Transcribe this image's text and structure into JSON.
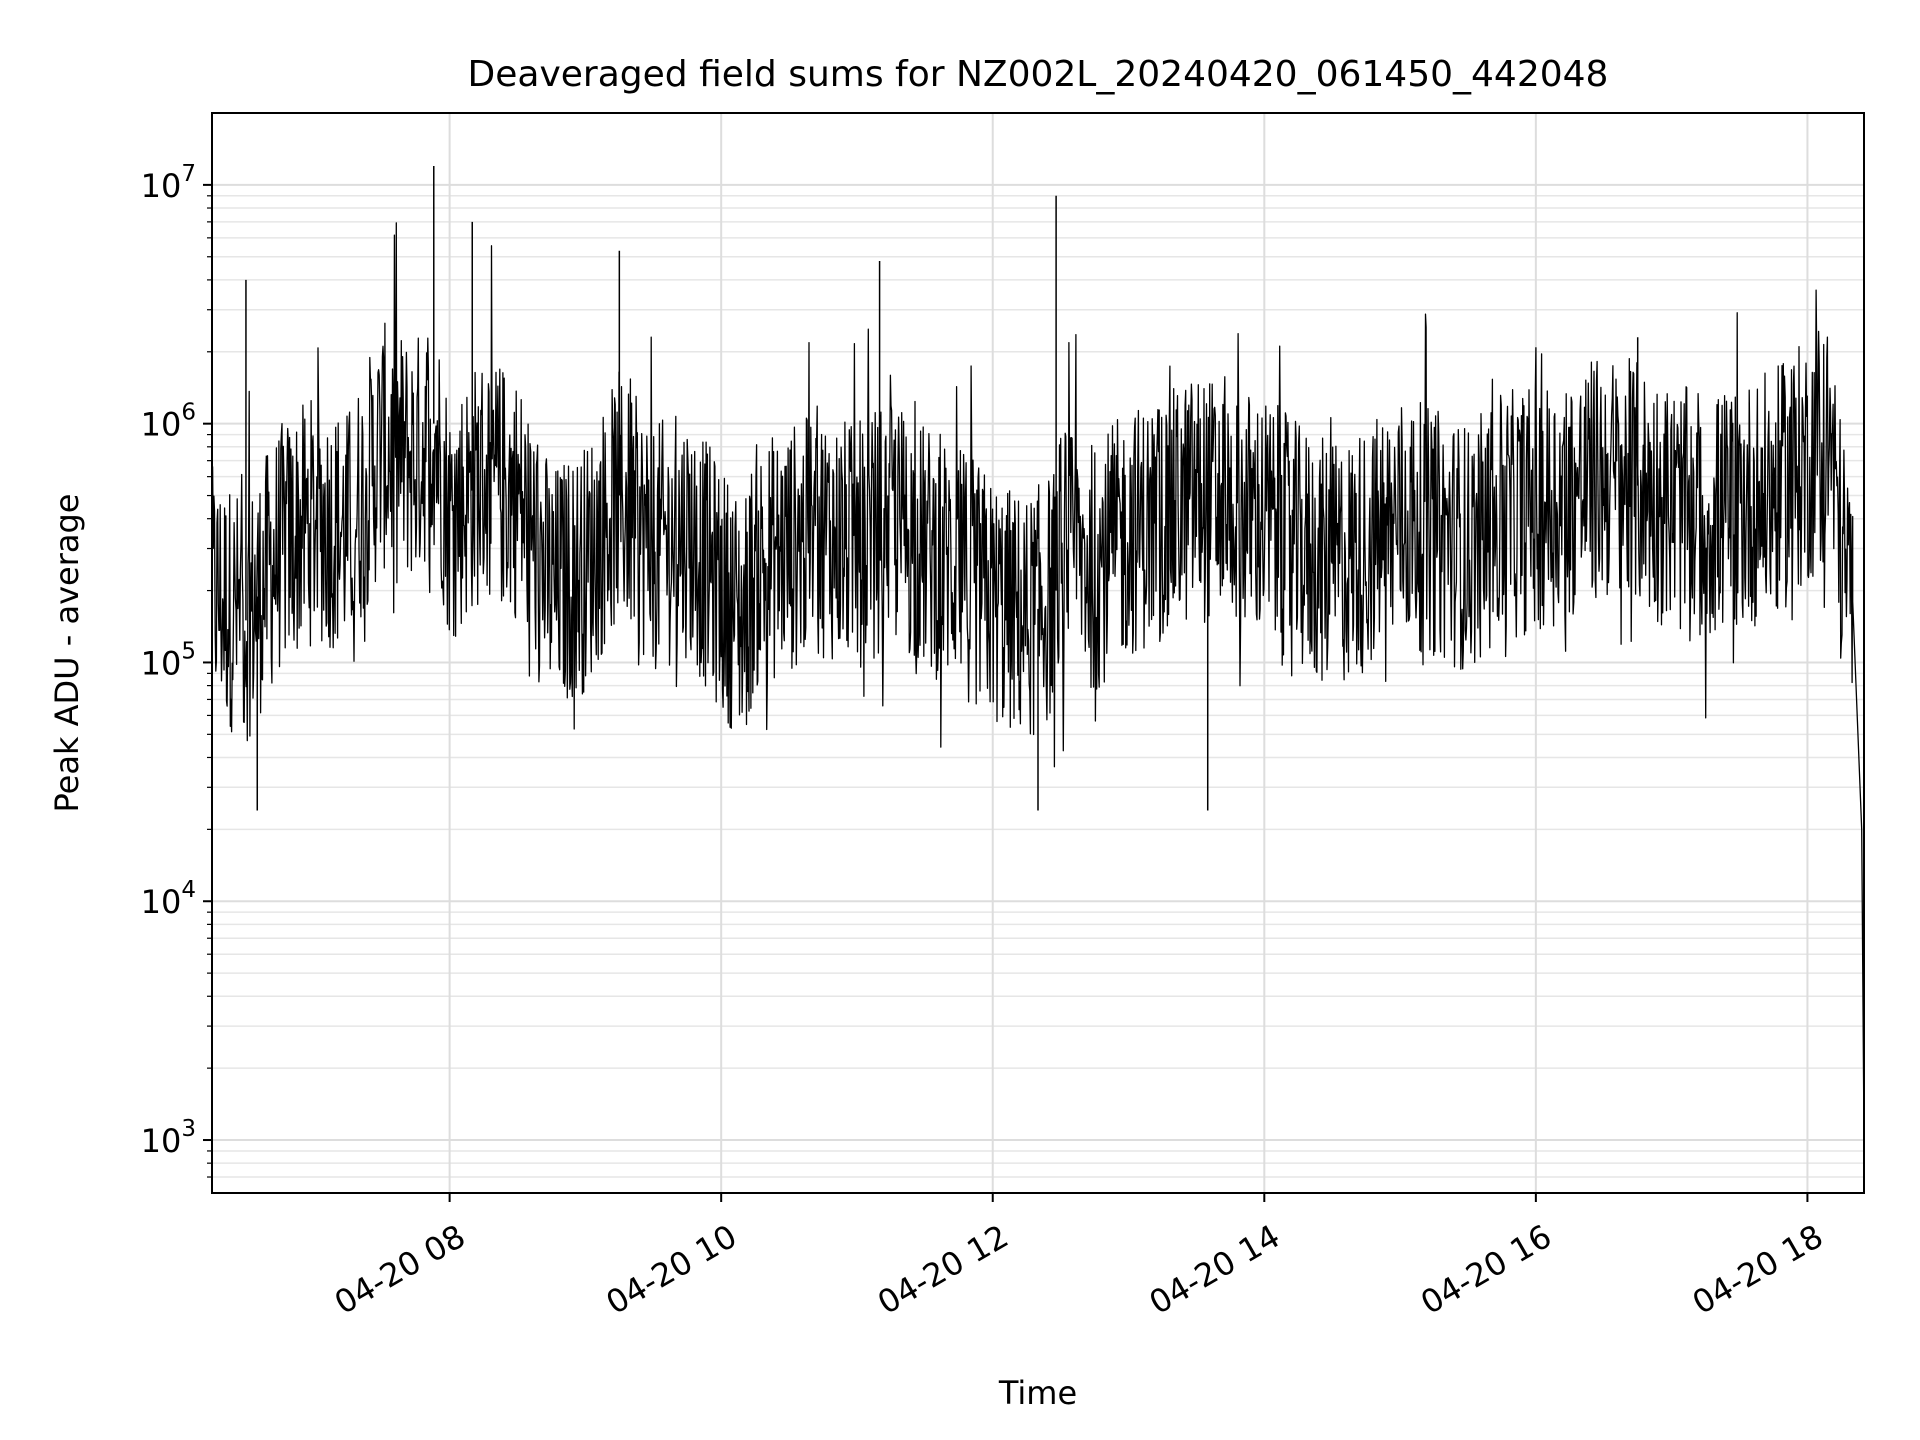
{
  "chart_data": {
    "type": "line",
    "title": "Deaveraged field sums for NZ002L_20240420_061450_442048",
    "xlabel": "Time",
    "ylabel": "Peak ADU - average",
    "x_scale": "time",
    "y_scale": "log",
    "xlim": [
      "04-20 06:15",
      "04-20 18:25"
    ],
    "ylim": [
      600,
      20000000
    ],
    "x_ticks": [
      "04-20 08",
      "04-20 10",
      "04-20 12",
      "04-20 14",
      "04-20 16",
      "04-20 18"
    ],
    "y_ticks": [
      {
        "base": "10",
        "exp": "3",
        "value": 1000
      },
      {
        "base": "10",
        "exp": "4",
        "value": 10000
      },
      {
        "base": "10",
        "exp": "5",
        "value": 100000
      },
      {
        "base": "10",
        "exp": "6",
        "value": 1000000
      },
      {
        "base": "10",
        "exp": "7",
        "value": 10000000
      }
    ],
    "grid": "major and minor",
    "line_color": "#000000",
    "series": [
      {
        "x": [
          "04-20 06:15",
          "04-20 06:30",
          "04-20 06:45",
          "04-20 07:00",
          "04-20 07:15",
          "04-20 07:30",
          "04-20 07:45",
          "04-20 07:53",
          "04-20 08:00",
          "04-20 08:15",
          "04-20 08:30",
          "04-20 08:45",
          "04-20 09:00",
          "04-20 09:10",
          "04-20 09:15",
          "04-20 09:30",
          "04-20 09:45",
          "04-20 10:00",
          "04-20 10:10",
          "04-20 10:15",
          "04-20 10:30",
          "04-20 10:45",
          "04-20 11:00",
          "04-20 11:15",
          "04-20 11:30",
          "04-20 11:45",
          "04-20 12:00",
          "04-20 12:15",
          "04-20 12:28",
          "04-20 12:30",
          "04-20 12:45",
          "04-20 13:00",
          "04-20 13:15",
          "04-20 13:30",
          "04-20 13:45",
          "04-20 14:00",
          "04-20 14:15",
          "04-20 14:30",
          "04-20 14:45",
          "04-20 15:00",
          "04-20 15:15",
          "04-20 15:30",
          "04-20 15:45",
          "04-20 16:00",
          "04-20 16:15",
          "04-20 16:30",
          "04-20 16:45",
          "04-20 17:00",
          "04-20 17:15",
          "04-20 17:30",
          "04-20 17:45",
          "04-20 18:00",
          "04-20 18:10",
          "04-20 18:15",
          "04-20 18:20",
          "04-20 18:24",
          "04-20 18:25"
        ],
        "y": [
          200000,
          150000,
          300000,
          400000,
          350000,
          800000,
          700000,
          1000000,
          400000,
          600000,
          500000,
          200000,
          250000,
          400000,
          500000,
          300000,
          350000,
          200000,
          150000,
          250000,
          300000,
          350000,
          300000,
          400000,
          300000,
          250000,
          180000,
          150000,
          200000,
          300000,
          250000,
          350000,
          400000,
          500000,
          450000,
          400000,
          300000,
          250000,
          300000,
          400000,
          350000,
          300000,
          400000,
          450000,
          500000,
          600000,
          550000,
          450000,
          400000,
          450000,
          500000,
          700000,
          900000,
          300000,
          180000,
          20000,
          1000
        ]
      }
    ],
    "spikes": [
      {
        "x": "04-20 06:30",
        "y": 4000000
      },
      {
        "x": "04-20 07:53",
        "y": 12000000
      },
      {
        "x": "04-20 08:10",
        "y": 7000000
      },
      {
        "x": "04-20 09:15",
        "y": 5300000
      },
      {
        "x": "04-20 11:10",
        "y": 4800000
      },
      {
        "x": "04-20 12:28",
        "y": 9000000
      },
      {
        "x": "04-20 16:45",
        "y": 2300000
      },
      {
        "x": "04-20 06:35",
        "y": 24000
      },
      {
        "x": "04-20 12:20",
        "y": 24000
      },
      {
        "x": "04-20 13:35",
        "y": 24000
      }
    ]
  }
}
